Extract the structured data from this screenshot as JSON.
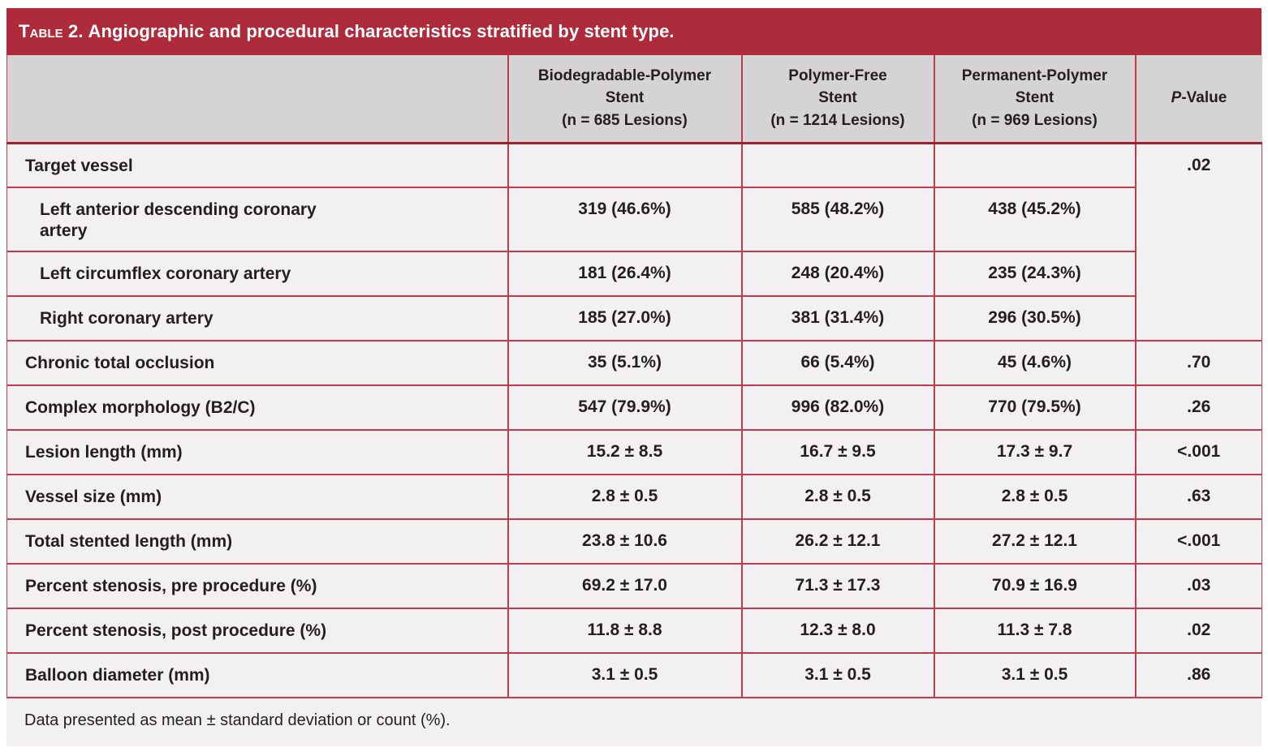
{
  "colors": {
    "banner_red": "#AE2B3B",
    "grid_red": "#C13B4D",
    "header_rule_red": "#9E2133",
    "body_bg": "#F2F0F0",
    "header_bg": "#D5D3D4",
    "text": "#231F20",
    "title_text": "#FFFFFF"
  },
  "table": {
    "title": {
      "label": "Table 2.",
      "text": "Angiographic and procedural characteristics stratified by stent type."
    },
    "header": {
      "row_label_column": "",
      "columns": [
        {
          "text": "Biodegradable-Polymer\nStent\n(n = 685 Lesions)"
        },
        {
          "text": "Polymer-Free\nStent\n(n = 1214 Lesions)"
        },
        {
          "text": "Permanent-Polymer\nStent\n(n = 969 Lesions)"
        }
      ],
      "p_value": {
        "italic": "P",
        "suffix": "-Value"
      }
    },
    "rows": [
      {
        "label": "Target vessel",
        "indent": false,
        "values": [
          "",
          "",
          ""
        ],
        "p": ".02",
        "p_rowspan": 4
      },
      {
        "label": "Left anterior descending coronary\nartery",
        "indent": true,
        "values": [
          "319 (46.6%)",
          "585 (48.2%)",
          "438 (45.2%)"
        ]
      },
      {
        "label": "Left circumflex coronary artery",
        "indent": true,
        "values": [
          "181 (26.4%)",
          "248 (20.4%)",
          "235 (24.3%)"
        ]
      },
      {
        "label": "Right coronary artery",
        "indent": true,
        "values": [
          "185 (27.0%)",
          "381 (31.4%)",
          "296 (30.5%)"
        ]
      },
      {
        "label": "Chronic total occlusion",
        "indent": false,
        "values": [
          "35 (5.1%)",
          "66 (5.4%)",
          "45 (4.6%)"
        ],
        "p": ".70"
      },
      {
        "label": "Complex morphology (B2/C)",
        "indent": false,
        "values": [
          "547 (79.9%)",
          "996 (82.0%)",
          "770 (79.5%)"
        ],
        "p": ".26"
      },
      {
        "label": "Lesion length (mm)",
        "indent": false,
        "values": [
          "15.2 ± 8.5",
          "16.7 ± 9.5",
          "17.3 ± 9.7"
        ],
        "p": "<.001"
      },
      {
        "label": "Vessel size (mm)",
        "indent": false,
        "values": [
          "2.8 ± 0.5",
          "2.8 ± 0.5",
          "2.8 ± 0.5"
        ],
        "p": ".63"
      },
      {
        "label": "Total stented length (mm)",
        "indent": false,
        "values": [
          "23.8 ± 10.6",
          "26.2 ± 12.1",
          "27.2 ± 12.1"
        ],
        "p": "<.001"
      },
      {
        "label": "Percent stenosis, pre procedure (%)",
        "indent": false,
        "values": [
          "69.2 ± 17.0",
          "71.3 ± 17.3",
          "70.9 ± 16.9"
        ],
        "p": ".03"
      },
      {
        "label": "Percent stenosis, post procedure (%)",
        "indent": false,
        "values": [
          "11.8 ± 8.8",
          "12.3 ± 8.0",
          "11.3 ± 7.8"
        ],
        "p": ".02"
      },
      {
        "label": "Balloon diameter (mm)",
        "indent": false,
        "values": [
          "3.1 ± 0.5",
          "3.1 ± 0.5",
          "3.1 ± 0.5"
        ],
        "p": ".86"
      }
    ],
    "footnote": "Data presented as mean ± standard deviation or count (%)."
  }
}
